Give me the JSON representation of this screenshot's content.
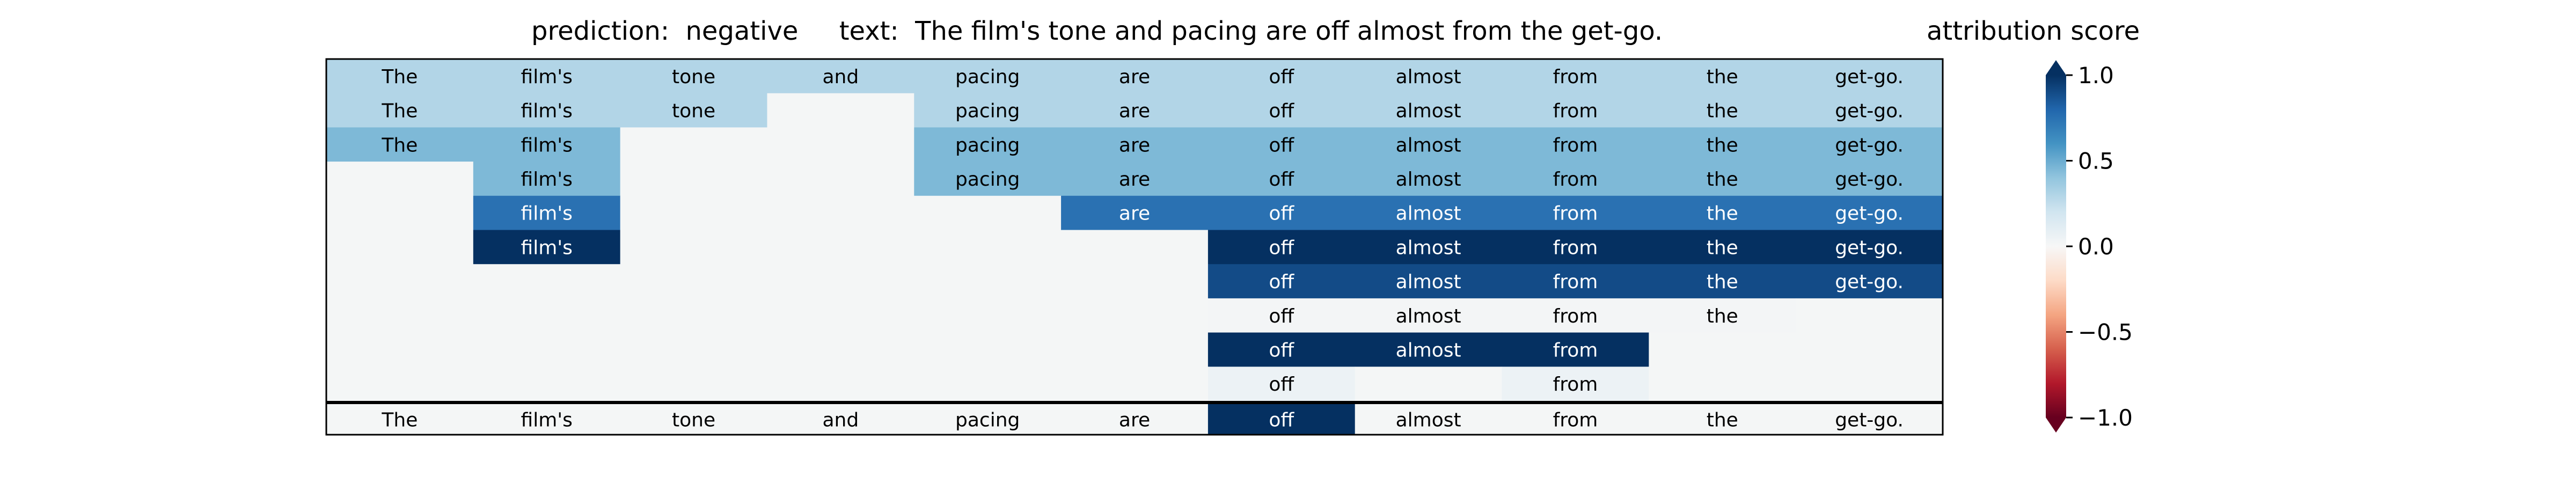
{
  "chart_data": {
    "type": "heatmap",
    "title": "prediction:  negative     text:  The film's tone and pacing are off almost from the get-go.",
    "columns": [
      "The",
      "film's",
      "tone",
      "and",
      "pacing",
      "are",
      "off",
      "almost",
      "from",
      "the",
      "get-go."
    ],
    "rows": [
      [
        0.3,
        0.3,
        0.3,
        0.3,
        0.3,
        0.3,
        0.3,
        0.3,
        0.3,
        0.3,
        0.3
      ],
      [
        0.3,
        0.3,
        0.3,
        null,
        0.3,
        0.3,
        0.3,
        0.3,
        0.3,
        0.3,
        0.3
      ],
      [
        0.45,
        0.45,
        null,
        null,
        0.45,
        0.45,
        0.45,
        0.45,
        0.45,
        0.45,
        0.45
      ],
      [
        null,
        0.45,
        null,
        null,
        0.45,
        0.45,
        0.45,
        0.45,
        0.45,
        0.45,
        0.45
      ],
      [
        null,
        0.75,
        null,
        null,
        null,
        0.75,
        0.75,
        0.75,
        0.75,
        0.75,
        0.75
      ],
      [
        null,
        1.0,
        null,
        null,
        null,
        null,
        1.0,
        1.0,
        1.0,
        1.0,
        1.0
      ],
      [
        null,
        null,
        null,
        null,
        null,
        null,
        0.9,
        0.9,
        0.9,
        0.9,
        0.9
      ],
      [
        null,
        null,
        null,
        null,
        null,
        null,
        0.02,
        0.02,
        0.02,
        0.02,
        null
      ],
      [
        null,
        null,
        null,
        null,
        null,
        null,
        1.0,
        1.0,
        1.0,
        null,
        null
      ],
      [
        null,
        null,
        null,
        null,
        null,
        null,
        0.06,
        null,
        0.06,
        null,
        null
      ]
    ],
    "baseline_row": [
      0,
      0,
      0,
      0,
      0,
      0,
      1.0,
      0,
      0,
      0,
      0
    ],
    "colorbar": {
      "label": "attribution score",
      "colormap": "RdBu",
      "range": [
        -1.0,
        1.0
      ],
      "ticks": [
        1.0,
        0.5,
        0.0,
        -0.5,
        -1.0
      ],
      "tick_labels": [
        "1.0",
        "0.5",
        "0.0",
        "−0.5",
        "−1.0"
      ]
    },
    "empty_cell_color": "#f4f6f6",
    "grid": false
  }
}
